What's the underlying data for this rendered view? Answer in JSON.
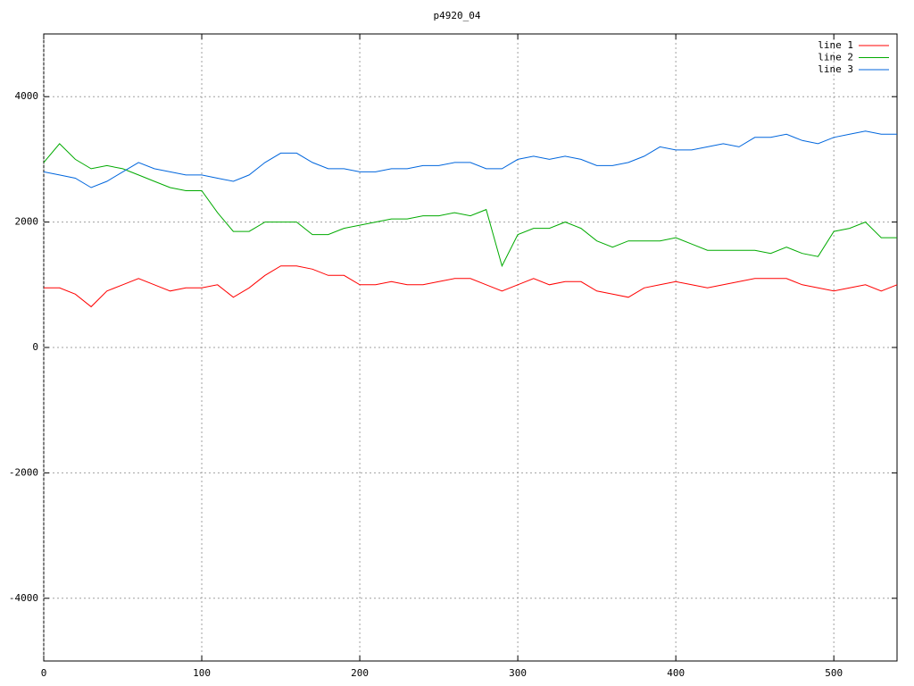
{
  "chart_data": {
    "type": "line",
    "title": "p4920_04",
    "x": [
      0,
      10,
      20,
      30,
      40,
      50,
      60,
      70,
      80,
      90,
      100,
      110,
      120,
      130,
      140,
      150,
      160,
      170,
      180,
      190,
      200,
      210,
      220,
      230,
      240,
      250,
      260,
      270,
      280,
      290,
      300,
      310,
      320,
      330,
      340,
      350,
      360,
      370,
      380,
      390,
      400,
      410,
      420,
      430,
      440,
      450,
      460,
      470,
      480,
      490,
      500,
      510,
      520,
      530,
      540
    ],
    "series": [
      {
        "name": "line 1",
        "color": "#ff0000",
        "values": [
          950,
          950,
          850,
          650,
          900,
          1000,
          1100,
          1000,
          900,
          950,
          950,
          1000,
          800,
          950,
          1150,
          1300,
          1300,
          1250,
          1150,
          1150,
          1000,
          1000,
          1050,
          1000,
          1000,
          1050,
          1100,
          1100,
          1000,
          900,
          1000,
          1100,
          1000,
          1050,
          1050,
          900,
          850,
          800,
          950,
          1000,
          1050,
          1000,
          950,
          1000,
          1050,
          1100,
          1100,
          1100,
          1000,
          950,
          900,
          950,
          1000,
          900,
          1000
        ]
      },
      {
        "name": "line 2",
        "color": "#00aa00",
        "values": [
          2950,
          3250,
          3000,
          2850,
          2900,
          2850,
          2750,
          2650,
          2550,
          2500,
          2500,
          2150,
          1850,
          1850,
          2000,
          2000,
          2000,
          1800,
          1800,
          1900,
          1950,
          2000,
          2050,
          2050,
          2100,
          2100,
          2150,
          2100,
          2200,
          1300,
          1800,
          1900,
          1900,
          2000,
          1900,
          1700,
          1600,
          1700,
          1700,
          1700,
          1750,
          1650,
          1550,
          1550,
          1550,
          1550,
          1500,
          1600,
          1500,
          1450,
          1850,
          1900,
          2000,
          1750,
          1750
        ]
      },
      {
        "name": "line 3",
        "color": "#0066dd",
        "values": [
          2800,
          2750,
          2700,
          2550,
          2650,
          2800,
          2950,
          2850,
          2800,
          2750,
          2750,
          2700,
          2650,
          2750,
          2950,
          3100,
          3100,
          2950,
          2850,
          2850,
          2800,
          2800,
          2850,
          2850,
          2900,
          2900,
          2950,
          2950,
          2850,
          2850,
          3000,
          3050,
          3000,
          3050,
          3000,
          2900,
          2900,
          2950,
          3050,
          3200,
          3150,
          3150,
          3200,
          3250,
          3200,
          3350,
          3350,
          3400,
          3300,
          3250,
          3350,
          3400,
          3450,
          3400,
          3400
        ]
      }
    ],
    "xlim": [
      0,
      540
    ],
    "xticks": [
      0,
      100,
      200,
      300,
      400,
      500
    ],
    "ylim": [
      -5000,
      5000
    ],
    "yticks": [
      -4000,
      -2000,
      0,
      2000,
      4000
    ],
    "grid": true,
    "legend": "top-right"
  }
}
